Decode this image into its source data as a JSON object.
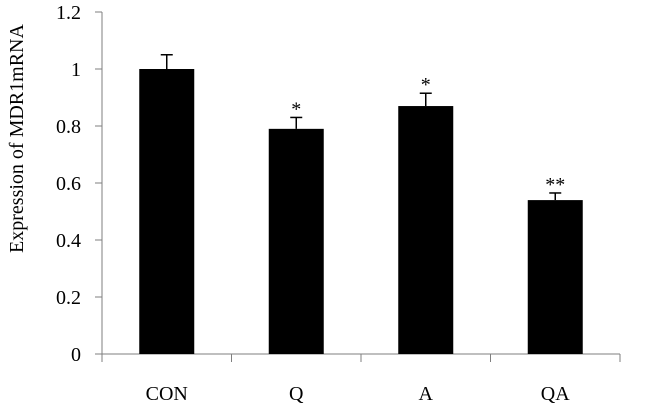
{
  "chart_data": {
    "type": "bar",
    "title": "",
    "xlabel": "",
    "ylabel": "Expression of MDR1mRNA",
    "categories": [
      "CON",
      "Q",
      "A",
      "QA"
    ],
    "values": [
      1.0,
      0.79,
      0.87,
      0.54
    ],
    "error_bars": [
      0.05,
      0.04,
      0.045,
      0.025
    ],
    "significance": [
      "",
      "*",
      "*",
      "**"
    ],
    "ylim": [
      0,
      1.2
    ],
    "yticks": [
      0,
      0.2,
      0.4,
      0.6,
      0.8,
      1,
      1.2
    ],
    "ytick_labels": [
      "0",
      "0.2",
      "0.4",
      "0.6",
      "0.8",
      "1",
      "1.2"
    ],
    "grid": false,
    "legend": null,
    "bar_color": "#000000",
    "axis_color": "#7f7f7f"
  }
}
